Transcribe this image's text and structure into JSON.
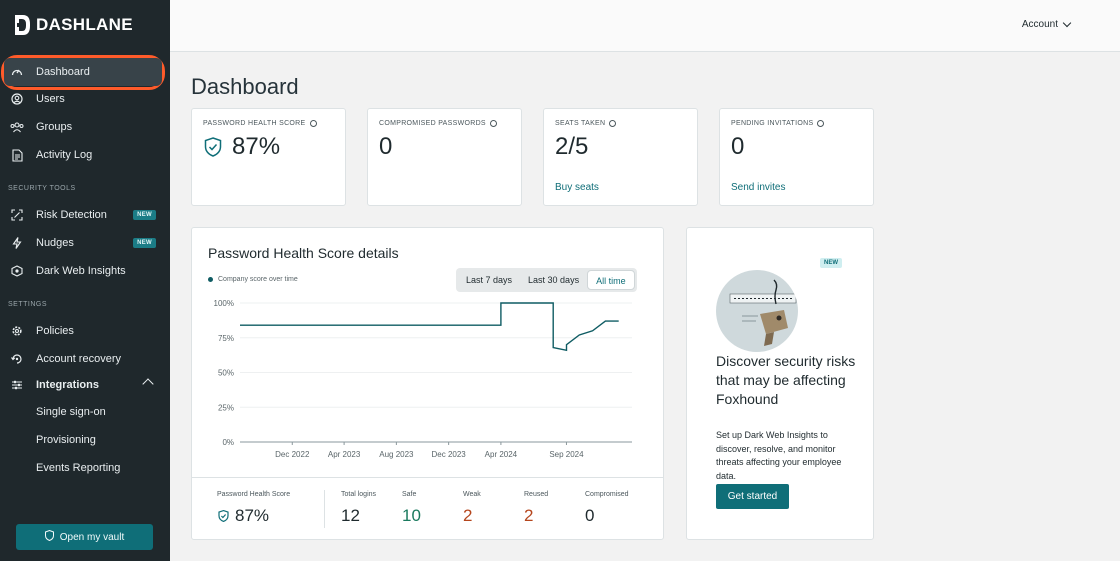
{
  "brand": {
    "name": "DASHLANE"
  },
  "sidebar": {
    "items": [
      {
        "label": "Dashboard",
        "icon": "gauge-icon"
      },
      {
        "label": "Users",
        "icon": "user-icon"
      },
      {
        "label": "Groups",
        "icon": "group-icon"
      },
      {
        "label": "Activity Log",
        "icon": "log-icon"
      }
    ],
    "security_title": "SECURITY TOOLS",
    "security_items": [
      {
        "label": "Risk Detection",
        "badge": "NEW",
        "icon": "risk-icon"
      },
      {
        "label": "Nudges",
        "badge": "NEW",
        "icon": "bolt-icon"
      },
      {
        "label": "Dark Web Insights",
        "icon": "dark-web-icon"
      }
    ],
    "settings_title": "SETTINGS",
    "settings_items": [
      {
        "label": "Policies",
        "icon": "policy-gear-icon"
      },
      {
        "label": "Account recovery",
        "icon": "recovery-icon"
      },
      {
        "label": "Integrations",
        "icon": "sliders-icon"
      }
    ],
    "integration_subitems": [
      "Single sign-on",
      "Provisioning",
      "Events Reporting"
    ],
    "vault_button": "Open my vault"
  },
  "header": {
    "account": "Account"
  },
  "page": {
    "title": "Dashboard"
  },
  "stats": [
    {
      "label": "PASSWORD HEALTH SCORE",
      "value": "87%"
    },
    {
      "label": "COMPROMISED PASSWORDS",
      "value": "0"
    },
    {
      "label": "SEATS TAKEN",
      "value": "2/5",
      "link": "Buy seats"
    },
    {
      "label": "PENDING INVITATIONS",
      "value": "0",
      "link": "Send invites"
    }
  ],
  "health": {
    "title": "Password Health Score details",
    "legend": "Company score over time",
    "ranges": [
      "Last 7 days",
      "Last 30 days",
      "All time"
    ],
    "selected_range": "All time",
    "summary": {
      "score_label": "Password Health Score",
      "score": "87%",
      "total_label": "Total logins",
      "total": "12",
      "safe_label": "Safe",
      "safe": "10",
      "weak_label": "Weak",
      "weak": "2",
      "reused_label": "Reused",
      "reused": "2",
      "compromised_label": "Compromised",
      "compromised": "0"
    }
  },
  "chart_data": {
    "type": "line",
    "title": "Password Health Score details",
    "xlabel": "",
    "ylabel": "",
    "ylim": [
      0,
      100
    ],
    "yticks": [
      "100%",
      "75%",
      "50%",
      "25%",
      "0%"
    ],
    "xticks": [
      "Dec 2022",
      "Apr 2023",
      "Aug 2023",
      "Dec 2023",
      "Apr 2024",
      "Sep 2024"
    ],
    "grid": true,
    "legend_position": "top-left",
    "color": "#0f5c63",
    "series": [
      {
        "name": "Company score over time",
        "x": [
          "2022-08",
          "2024-04",
          "2024-04",
          "2024-08",
          "2024-08",
          "2024-08",
          "2024-09",
          "2024-09",
          "2024-10",
          "2024-11",
          "2024-12",
          "2025-01"
        ],
        "y": [
          84,
          84,
          100,
          100,
          85,
          68,
          66,
          70,
          77,
          80,
          87,
          87
        ]
      }
    ]
  },
  "promo": {
    "badge": "NEW",
    "title": "Discover security risks that may be affecting Foxhound",
    "text": "Set up Dark Web Insights to discover, resolve, and monitor threats affecting your employee data.",
    "button": "Get started"
  }
}
